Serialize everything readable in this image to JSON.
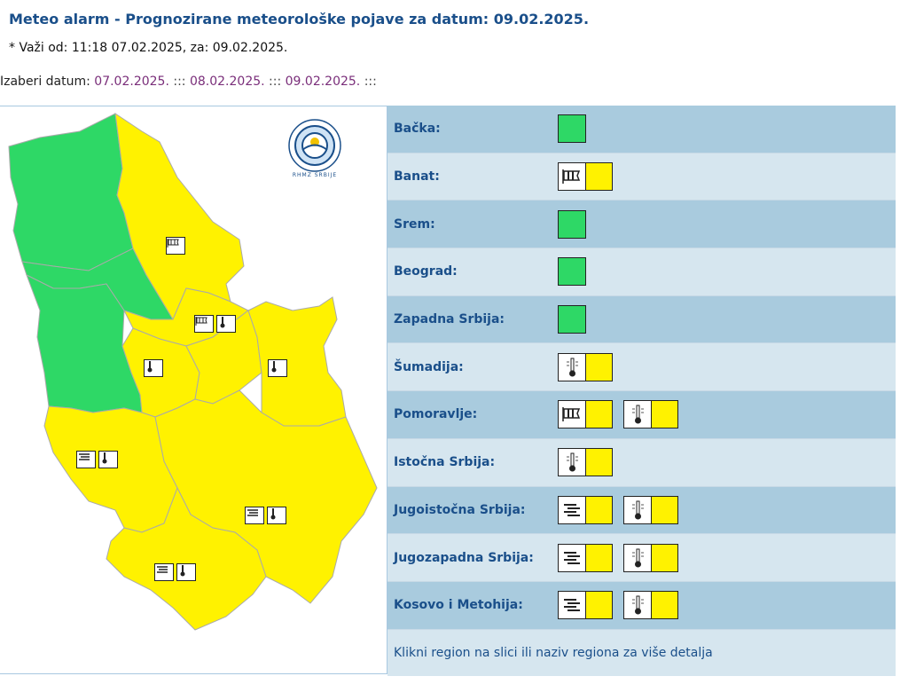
{
  "header": {
    "title": "Meteo alarm - Prognozirane meteorološke pojave za datum:  09.02.2025.",
    "validity": "* Važi od: 11:18 07.02.2025, za: 09.02.2025."
  },
  "date_selector": {
    "label": "Izaberi datum:",
    "dates": [
      "07.02.2025.",
      "08.02.2025.",
      "09.02.2025."
    ],
    "separator": ":::"
  },
  "colors": {
    "green": "#2ed866",
    "yellow": "#fff200",
    "title": "#1a4f8a",
    "link": "#7a2e7a"
  },
  "regions": [
    {
      "label": "Bačka:",
      "warnings": []
    },
    {
      "label": "Banat:",
      "warnings": [
        "wind-icon"
      ]
    },
    {
      "label": "Srem:",
      "warnings": []
    },
    {
      "label": "Beograd:",
      "warnings": []
    },
    {
      "label": "Zapadna Srbija:",
      "warnings": []
    },
    {
      "label": "Šumadija:",
      "warnings": [
        "low-temperature-icon"
      ]
    },
    {
      "label": "Pomoravlje:",
      "warnings": [
        "wind-icon",
        "low-temperature-icon"
      ]
    },
    {
      "label": "Istočna Srbija:",
      "warnings": [
        "low-temperature-icon"
      ]
    },
    {
      "label": "Jugoistočna Srbija:",
      "warnings": [
        "fog-icon",
        "low-temperature-icon"
      ]
    },
    {
      "label": "Jugozapadna Srbija:",
      "warnings": [
        "fog-icon",
        "low-temperature-icon"
      ]
    },
    {
      "label": "Kosovo i Metohija:",
      "warnings": [
        "fog-icon",
        "low-temperature-icon"
      ]
    }
  ],
  "footer": {
    "hint": "Klikni region na slici ili naziv regiona za više detalja"
  },
  "map": {
    "logo_text": "RHMZ SRBIJE"
  }
}
